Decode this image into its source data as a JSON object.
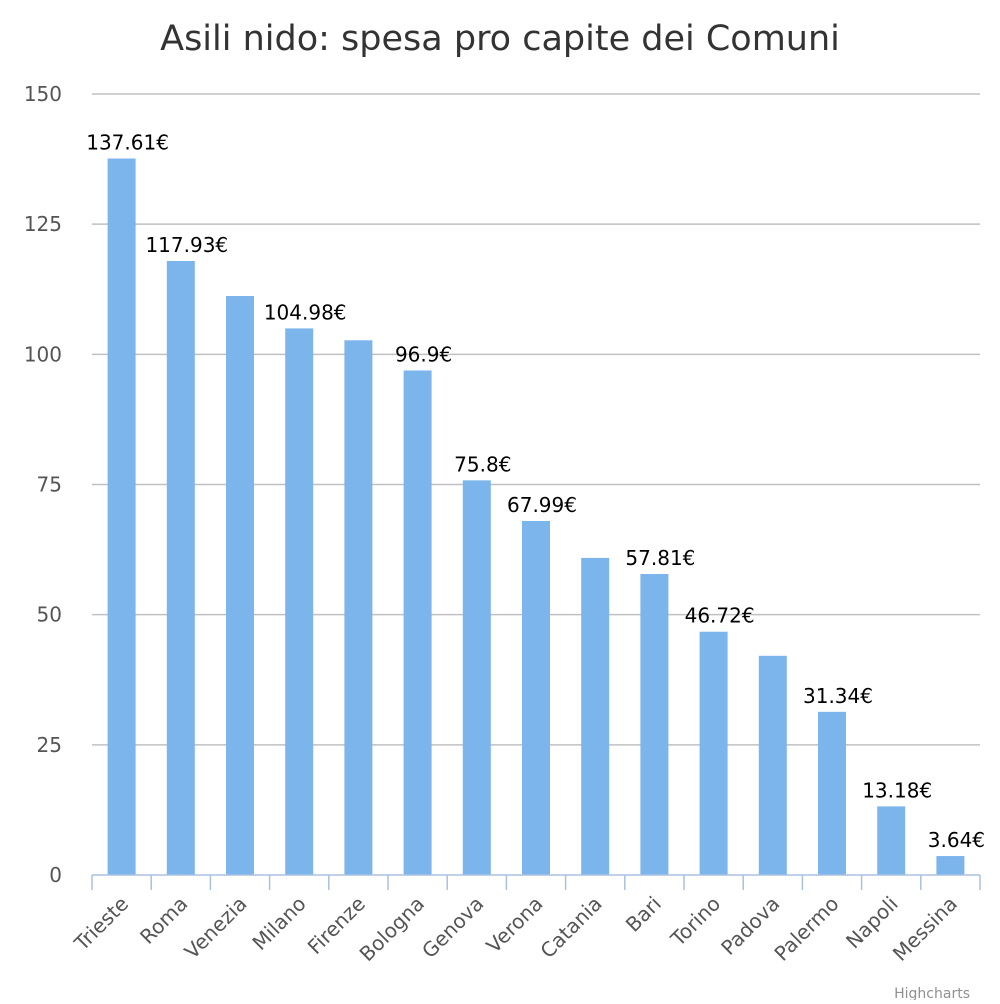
{
  "chart_data": {
    "type": "bar",
    "title": "Asili nido: spesa pro capite dei Comuni",
    "categories": [
      "Trieste",
      "Roma",
      "Venezia",
      "Milano",
      "Firenze",
      "Bologna",
      "Genova",
      "Verona",
      "Catania",
      "Bari",
      "Torino",
      "Padova",
      "Palermo",
      "Napoli",
      "Messina"
    ],
    "values": [
      137.61,
      117.93,
      111.2,
      104.98,
      102.7,
      96.9,
      75.8,
      67.99,
      60.9,
      57.81,
      46.72,
      42.1,
      31.34,
      13.18,
      3.64
    ],
    "data_labels": [
      "137.61€",
      "117.93€",
      "",
      "104.98€",
      "",
      "96.9€",
      "75.8€",
      "67.99€",
      "",
      "57.81€",
      "46.72€",
      "",
      "31.34€",
      "13.18€",
      "3.64€"
    ],
    "ylim": [
      0,
      150
    ],
    "y_ticks": [
      0,
      25,
      50,
      75,
      100,
      125,
      150
    ],
    "xlabel": "",
    "ylabel": "",
    "grid": true,
    "legend": "none",
    "bar_color": "#7cb5ec",
    "credits": "Highcharts"
  }
}
